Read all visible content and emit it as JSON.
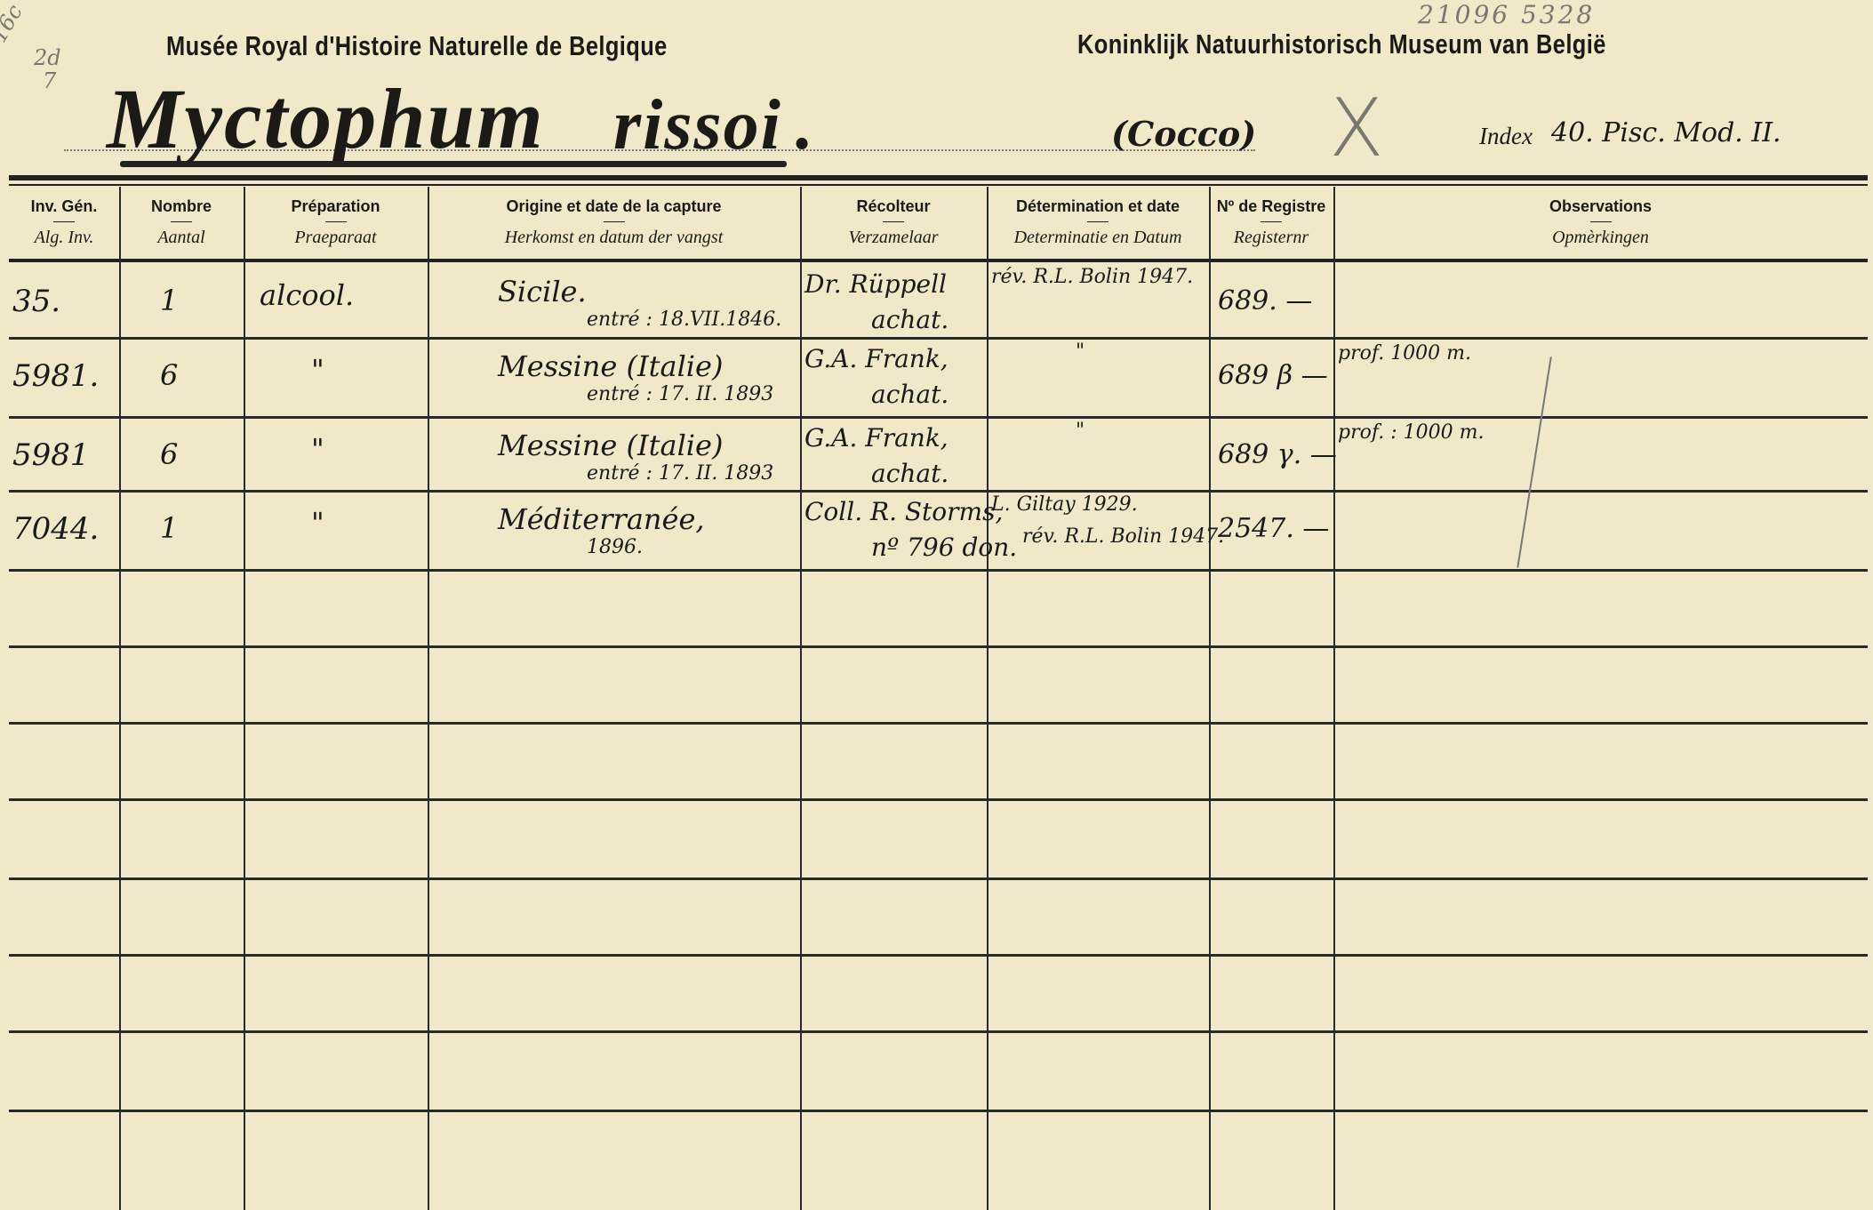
{
  "card": {
    "margin_note_pencil": [
      "16c",
      "2d",
      "7"
    ],
    "catalog_number_pencil": "21096 5328",
    "institution_fr": "Musée Royal d'Histoire Naturelle de Belgique",
    "institution_nl": "Koninklijk Natuurhistorisch Museum van België",
    "species_genus": "Myctophum",
    "species_epithet": "rissoi",
    "species_period": ".",
    "author": "(Cocco)",
    "pencil_mark": "X",
    "index_label": "Index",
    "index_value": "40. Pisc. Mod. II."
  },
  "columns": [
    {
      "fr": "Inv. Gén.",
      "nl": "Alg. Inv."
    },
    {
      "fr": "Nombre",
      "nl": "Aantal"
    },
    {
      "fr": "Préparation",
      "nl": "Praeparaat"
    },
    {
      "fr": "Origine et date de la capture",
      "nl": "Herkomst en datum der vangst"
    },
    {
      "fr": "Récolteur",
      "nl": "Verzamelaar"
    },
    {
      "fr": "Détermination et date",
      "nl": "Determinatie en Datum"
    },
    {
      "fr": "Nº de Registre",
      "nl": "Registernr"
    },
    {
      "fr": "Observations",
      "nl": "Opmèrkingen"
    }
  ],
  "rows": [
    {
      "inv": "35.",
      "nombre": "1",
      "prep": "alcool.",
      "origin": "Sicile.",
      "date": "entré : 18.VII.1846.",
      "collector": "Dr. Rüppell",
      "collector2": "achat.",
      "determination": "rév. R.L. Bolin 1947.",
      "determination2": "",
      "register": "689. —",
      "obs": ""
    },
    {
      "inv": "5981.",
      "nombre": "6",
      "prep": "\"",
      "origin": "Messine (Italie)",
      "date": "entré : 17. II. 1893",
      "collector": "G.A. Frank,",
      "collector2": "achat.",
      "determination": "\"",
      "determination2": "",
      "register": "689 β —",
      "obs": "prof. 1000 m."
    },
    {
      "inv": "5981",
      "nombre": "6",
      "prep": "\"",
      "origin": "Messine (Italie)",
      "date": "entré : 17. II. 1893",
      "collector": "G.A. Frank,",
      "collector2": "achat.",
      "determination": "\"",
      "determination2": "",
      "register": "689 γ. —",
      "obs": "prof. : 1000 m."
    },
    {
      "inv": "7044.",
      "nombre": "1",
      "prep": "\"",
      "origin": "Méditerranée,",
      "date": "1896.",
      "collector": "Coll. R. Storms,",
      "collector2": "nº 796 don.",
      "determination": "L. Giltay 1929.",
      "determination2": "rév. R.L. Bolin 1947.",
      "register": "2547. —",
      "obs": ""
    },
    {},
    {},
    {},
    {},
    {},
    {},
    {},
    {}
  ],
  "colors": {
    "paper": "#f1e8c9",
    "ink": "#1b1a17",
    "pencil": "#7a7670"
  }
}
